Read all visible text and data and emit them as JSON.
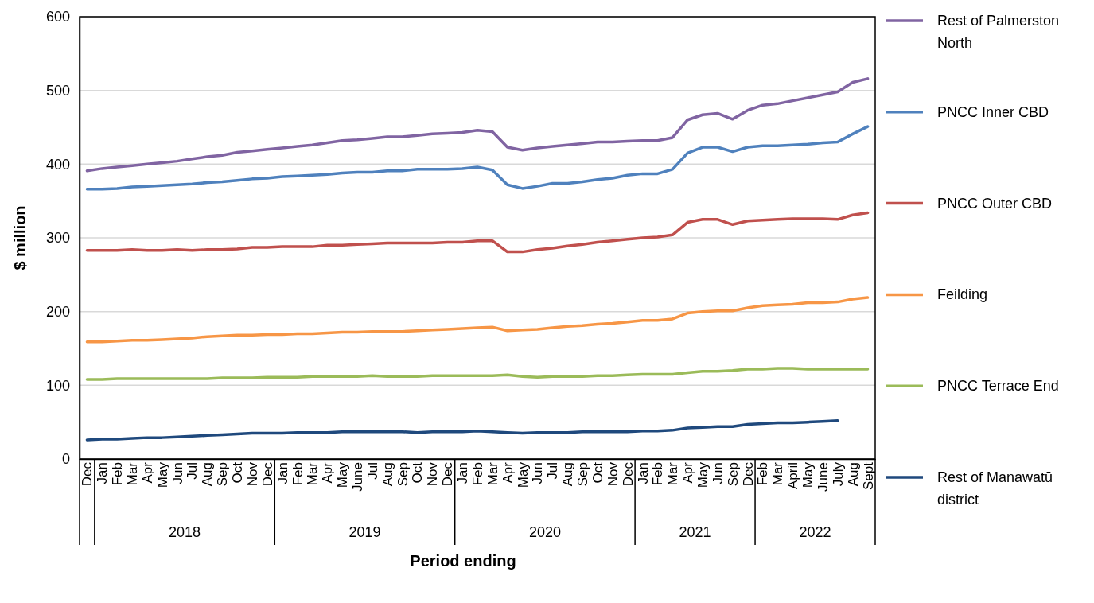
{
  "chart_data": {
    "type": "line",
    "xlabel": "Period ending",
    "ylabel": "$ million",
    "categories": [
      "Dec",
      "Jan",
      "Feb",
      "Mar",
      "Apr",
      "May",
      "Jun",
      "Jul",
      "Aug",
      "Sep",
      "Oct",
      "Nov",
      "Dec",
      "Jan",
      "Feb",
      "Mar",
      "Apr",
      "May",
      "June",
      "Jul",
      "Aug",
      "Sep",
      "Oct",
      "Nov",
      "Dec",
      "Jan",
      "Feb",
      "Mar",
      "Apr",
      "May",
      "Jun",
      "Jul",
      "Aug",
      "Sep",
      "Oct",
      "Nov",
      "Dec",
      "Jan",
      "Feb",
      "Mar",
      "Apr",
      "May",
      "Jun",
      "Sep",
      "Dec",
      "Feb",
      "Mar",
      "April",
      "May",
      "June",
      "July",
      "Aug",
      "Sept"
    ],
    "annotations": [
      "2018",
      "2019",
      "2020",
      "2021",
      "2022"
    ],
    "series": [
      {
        "name": "Rest of Palmerston North",
        "color": "#8064a2",
        "values": [
          391,
          394,
          396,
          398,
          400,
          402,
          404,
          407,
          410,
          412,
          416,
          418,
          420,
          422,
          424,
          426,
          429,
          432,
          433,
          435,
          437,
          437,
          439,
          441,
          442,
          443,
          446,
          444,
          423,
          419,
          422,
          424,
          426,
          428,
          430,
          430,
          431,
          432,
          432,
          436,
          460,
          467,
          469,
          461,
          473,
          480,
          482,
          486,
          490,
          494,
          498,
          511,
          516
        ]
      },
      {
        "name": "PNCC Inner CBD",
        "color": "#4f81bd",
        "values": [
          366,
          366,
          367,
          369,
          370,
          371,
          372,
          373,
          375,
          376,
          378,
          380,
          381,
          383,
          384,
          385,
          386,
          388,
          389,
          389,
          391,
          391,
          393,
          393,
          393,
          394,
          396,
          392,
          372,
          367,
          370,
          374,
          374,
          376,
          379,
          381,
          385,
          387,
          387,
          393,
          415,
          423,
          423,
          417,
          423,
          425,
          425,
          426,
          427,
          429,
          430,
          441,
          451
        ]
      },
      {
        "name": "PNCC Outer CBD",
        "color": "#c0504d",
        "values": [
          283,
          283,
          283,
          284,
          283,
          283,
          284,
          283,
          284,
          284,
          285,
          287,
          287,
          288,
          288,
          288,
          290,
          290,
          291,
          292,
          293,
          293,
          293,
          293,
          294,
          294,
          296,
          296,
          281,
          281,
          284,
          286,
          289,
          291,
          294,
          296,
          298,
          300,
          301,
          304,
          321,
          325,
          325,
          318,
          323,
          324,
          325,
          326,
          326,
          326,
          325,
          331,
          334
        ]
      },
      {
        "name": "Feilding",
        "color": "#f79646",
        "values": [
          159,
          159,
          160,
          161,
          161,
          162,
          163,
          164,
          166,
          167,
          168,
          168,
          169,
          169,
          170,
          170,
          171,
          172,
          172,
          173,
          173,
          173,
          174,
          175,
          176,
          177,
          178,
          179,
          174,
          175,
          176,
          178,
          180,
          181,
          183,
          184,
          186,
          188,
          188,
          190,
          198,
          200,
          201,
          201,
          205,
          208,
          209,
          210,
          212,
          212,
          213,
          217,
          219
        ]
      },
      {
        "name": "PNCC Terrace End",
        "color": "#9bbb59",
        "values": [
          108,
          108,
          109,
          109,
          109,
          109,
          109,
          109,
          109,
          110,
          110,
          110,
          111,
          111,
          111,
          112,
          112,
          112,
          112,
          113,
          112,
          112,
          112,
          113,
          113,
          113,
          113,
          113,
          114,
          112,
          111,
          112,
          112,
          112,
          113,
          113,
          114,
          115,
          115,
          115,
          117,
          119,
          119,
          120,
          122,
          122,
          123,
          123,
          122,
          122,
          122,
          122,
          122
        ]
      },
      {
        "name": "Rest of Manawatū district",
        "color": "#1f497d",
        "values": [
          26,
          27,
          27,
          28,
          29,
          29,
          30,
          31,
          32,
          33,
          34,
          35,
          35,
          35,
          36,
          36,
          36,
          37,
          37,
          37,
          37,
          37,
          36,
          37,
          37,
          37,
          38,
          37,
          36,
          35,
          36,
          36,
          36,
          37,
          37,
          37,
          37,
          38,
          38,
          39,
          42,
          43,
          44,
          44,
          47,
          48,
          49,
          49,
          50,
          51,
          52,
          null,
          null
        ]
      }
    ],
    "ylim": [
      0,
      600
    ],
    "yticks": [
      0,
      100,
      200,
      300,
      400,
      500,
      600
    ],
    "grid": "y",
    "legend": "right",
    "marker": "none",
    "line_style": "solid"
  }
}
